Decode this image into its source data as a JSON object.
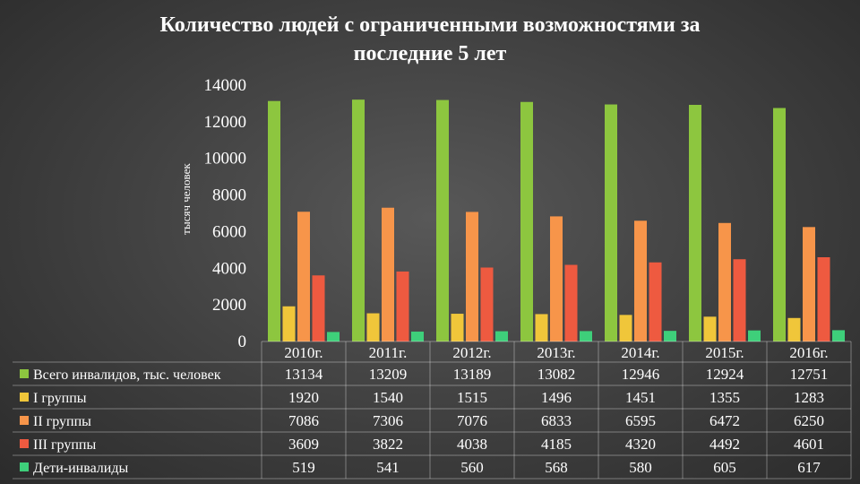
{
  "chart_data": {
    "type": "bar",
    "title_line1": "Количество людей с ограниченными возможностями за",
    "title_line2": "последние 5 лет",
    "ylabel": "тысяч человек",
    "ylim": [
      0,
      14000
    ],
    "yticks": [
      "0",
      "2000",
      "4000",
      "6000",
      "8000",
      "10000",
      "12000",
      "14000"
    ],
    "categories": [
      "2010г.",
      "2011г.",
      "2012г.",
      "2013г.",
      "2014г.",
      "2015г.",
      "2016г."
    ],
    "legend": "data-table-left",
    "series": [
      {
        "name": "Всего инвалидов, тыс. человек",
        "color": "#8dc63f",
        "values": [
          13134,
          13209,
          13189,
          13082,
          12946,
          12924,
          12751
        ],
        "labels": [
          "13134",
          "13209",
          "13189",
          "13082",
          "12946",
          "12924",
          "12751"
        ]
      },
      {
        "name": "I группы",
        "color": "#f0c63a",
        "values": [
          1920,
          1540,
          1515,
          1496,
          1451,
          1355,
          1283
        ],
        "labels": [
          "1920",
          "1540",
          "1515",
          "1496",
          "1451",
          "1355",
          "1283"
        ]
      },
      {
        "name": "II группы",
        "color": "#f7954a",
        "values": [
          7086,
          7306,
          7076,
          6833,
          6595,
          6472,
          6250
        ],
        "labels": [
          "7086",
          "7306",
          "7076",
          "6833",
          "6595",
          "6472",
          "6250"
        ]
      },
      {
        "name": "III группы",
        "color": "#ee5a40",
        "values": [
          3609,
          3822,
          4038,
          4185,
          4320,
          4492,
          4601
        ],
        "labels": [
          "3609",
          "3822",
          "4038",
          "4185",
          "4320",
          "4492",
          "4601"
        ]
      },
      {
        "name": "Дети-инвалиды",
        "color": "#3ecf7a",
        "values": [
          519,
          541,
          560,
          568,
          580,
          605,
          617
        ],
        "labels": [
          "519",
          "541",
          "560",
          "568",
          "580",
          "605",
          "617"
        ]
      }
    ]
  }
}
